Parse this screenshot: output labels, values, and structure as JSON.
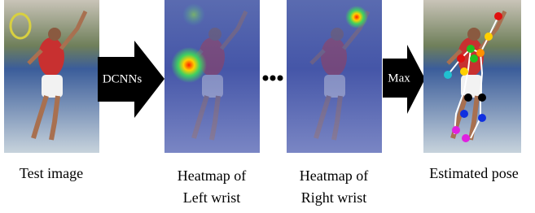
{
  "panels": [
    {
      "caption": [
        "Test image"
      ]
    },
    {
      "caption": [
        "Heatmap of",
        "Left wrist"
      ]
    },
    {
      "caption": [
        "Heatmap of",
        "Right wrist"
      ]
    },
    {
      "caption": [
        "Estimated pose"
      ]
    }
  ],
  "arrows": [
    {
      "label": "DCNNs"
    },
    {
      "label": "Max"
    }
  ]
}
